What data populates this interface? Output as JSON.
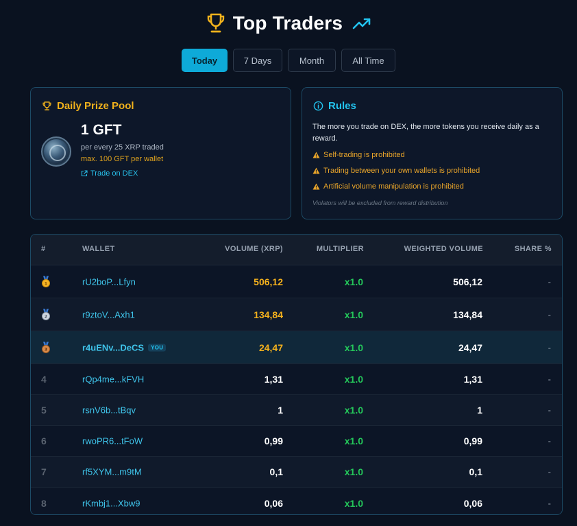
{
  "header": {
    "title": "Top Traders",
    "trophy_icon": "trophy-icon",
    "trend_icon": "trending-up-icon"
  },
  "tabs": [
    {
      "label": "Today",
      "active": true
    },
    {
      "label": "7 Days",
      "active": false
    },
    {
      "label": "Month",
      "active": false
    },
    {
      "label": "All Time",
      "active": false
    }
  ],
  "prize": {
    "title": "Daily Prize Pool",
    "amount": "1 GFT",
    "per": "per every 25 XRP traded",
    "max": "max. 100 GFT per wallet",
    "link": "Trade on DEX"
  },
  "rules": {
    "title": "Rules",
    "description": "The more you trade on DEX, the more tokens you receive daily as a reward.",
    "items": [
      "Self-trading is prohibited",
      "Trading between your own wallets is prohibited",
      "Artificial volume manipulation is prohibited"
    ],
    "note": "Violators will be excluded from reward distribution"
  },
  "table": {
    "headers": {
      "rank": "#",
      "wallet": "WALLET",
      "volume": "VOLUME (XRP)",
      "multiplier": "MULTIPLIER",
      "weighted": "WEIGHTED VOLUME",
      "share": "SHARE %"
    },
    "you_badge": "YOU",
    "rows": [
      {
        "rank": "1",
        "wallet": "rU2boP...Lfyn",
        "volume": "506,12",
        "multiplier": "x1.0",
        "weighted": "506,12",
        "share": "-"
      },
      {
        "rank": "2",
        "wallet": "r9ztoV...Axh1",
        "volume": "134,84",
        "multiplier": "x1.0",
        "weighted": "134,84",
        "share": "-"
      },
      {
        "rank": "3",
        "wallet": "r4uENv...DeCS",
        "volume": "24,47",
        "multiplier": "x1.0",
        "weighted": "24,47",
        "share": "-"
      },
      {
        "rank": "4",
        "wallet": "rQp4me...kFVH",
        "volume": "1,31",
        "multiplier": "x1.0",
        "weighted": "1,31",
        "share": "-"
      },
      {
        "rank": "5",
        "wallet": "rsnV6b...tBqv",
        "volume": "1",
        "multiplier": "x1.0",
        "weighted": "1",
        "share": "-"
      },
      {
        "rank": "6",
        "wallet": "rwoPR6...tFoW",
        "volume": "0,99",
        "multiplier": "x1.0",
        "weighted": "0,99",
        "share": "-"
      },
      {
        "rank": "7",
        "wallet": "rf5XYM...m9tM",
        "volume": "0,1",
        "multiplier": "x1.0",
        "weighted": "0,1",
        "share": "-"
      },
      {
        "rank": "8",
        "wallet": "rKmbj1...Xbw9",
        "volume": "0,06",
        "multiplier": "x1.0",
        "weighted": "0,06",
        "share": "-"
      }
    ]
  },
  "colors": {
    "accent": "#0eaad8",
    "gold": "#f2b21c",
    "green": "#24c75a",
    "warning": "#e9a52a"
  }
}
